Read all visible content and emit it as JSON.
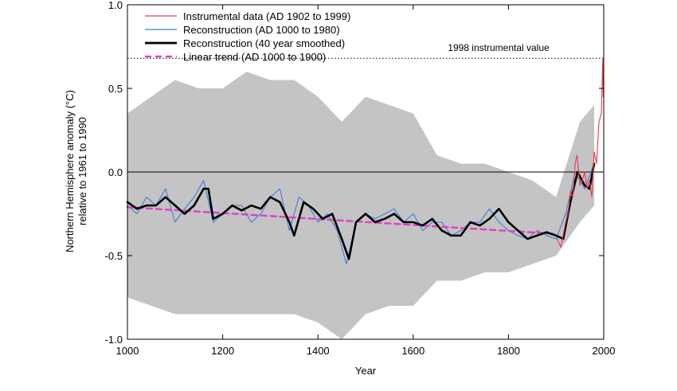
{
  "chart_data": {
    "type": "line",
    "title": "",
    "xlabel": "Year",
    "ylabel": "Northern Hemisphere anomaly (°C)",
    "ylabel_line2": "relative to 1961 to 1990",
    "xlim": [
      1000,
      2000
    ],
    "ylim": [
      -1.0,
      1.0
    ],
    "x_ticks": [
      1000,
      1200,
      1400,
      1600,
      1800,
      2000
    ],
    "y_ticks": [
      -1.0,
      -0.5,
      0.0,
      0.5,
      1.0
    ],
    "y_tick_labels": [
      "-1.0",
      "-0.5",
      "0.0",
      "0.5",
      "1.0"
    ],
    "legend_position": "top-left",
    "grid": false,
    "zero_line": true,
    "annotation": {
      "label": "1998 instrumental value",
      "value": 0.68
    },
    "series": [
      {
        "name": "Instrumental data (AD 1902 to 1999)",
        "color": "#e8394a",
        "style": "line-thin",
        "x": [
          1902,
          1910,
          1920,
          1925,
          1930,
          1935,
          1940,
          1944,
          1950,
          1955,
          1960,
          1965,
          1970,
          1975,
          1980,
          1985,
          1990,
          1995,
          1998,
          1999
        ],
        "y": [
          -0.4,
          -0.45,
          -0.3,
          -0.25,
          -0.12,
          -0.15,
          0.05,
          0.1,
          -0.08,
          -0.05,
          0.0,
          -0.1,
          -0.05,
          -0.15,
          0.12,
          0.05,
          0.3,
          0.35,
          0.68,
          0.45
        ]
      },
      {
        "name": "Reconstruction (AD 1000 to 1980)",
        "color": "#3a7fd6",
        "style": "line-thin",
        "x": [
          1000,
          1020,
          1040,
          1060,
          1080,
          1100,
          1120,
          1140,
          1160,
          1180,
          1200,
          1220,
          1240,
          1260,
          1280,
          1300,
          1320,
          1340,
          1360,
          1380,
          1400,
          1420,
          1440,
          1460,
          1480,
          1500,
          1520,
          1540,
          1560,
          1580,
          1600,
          1620,
          1640,
          1660,
          1680,
          1700,
          1720,
          1740,
          1760,
          1780,
          1800,
          1820,
          1840,
          1860,
          1880,
          1900,
          1920,
          1940,
          1960,
          1980
        ],
        "y": [
          -0.2,
          -0.25,
          -0.15,
          -0.2,
          -0.1,
          -0.3,
          -0.22,
          -0.15,
          -0.05,
          -0.3,
          -0.25,
          -0.2,
          -0.2,
          -0.3,
          -0.25,
          -0.15,
          -0.1,
          -0.35,
          -0.15,
          -0.2,
          -0.3,
          -0.25,
          -0.35,
          -0.55,
          -0.3,
          -0.25,
          -0.28,
          -0.25,
          -0.22,
          -0.3,
          -0.25,
          -0.35,
          -0.3,
          -0.3,
          -0.38,
          -0.35,
          -0.3,
          -0.3,
          -0.22,
          -0.3,
          -0.35,
          -0.38,
          -0.4,
          -0.35,
          -0.38,
          -0.4,
          -0.25,
          0.0,
          -0.1,
          0.05
        ]
      },
      {
        "name": "Reconstruction (40 year smoothed)",
        "color": "#000000",
        "style": "line-thick",
        "x": [
          1000,
          1020,
          1040,
          1060,
          1080,
          1100,
          1120,
          1140,
          1160,
          1170,
          1180,
          1200,
          1220,
          1240,
          1260,
          1280,
          1300,
          1320,
          1340,
          1350,
          1370,
          1390,
          1410,
          1430,
          1450,
          1465,
          1480,
          1500,
          1520,
          1540,
          1560,
          1580,
          1600,
          1620,
          1640,
          1660,
          1680,
          1700,
          1720,
          1740,
          1760,
          1780,
          1800,
          1820,
          1840,
          1860,
          1880,
          1900,
          1915,
          1930,
          1945,
          1960,
          1970,
          1980
        ],
        "y": [
          -0.18,
          -0.22,
          -0.2,
          -0.2,
          -0.15,
          -0.2,
          -0.25,
          -0.2,
          -0.1,
          -0.1,
          -0.28,
          -0.25,
          -0.2,
          -0.23,
          -0.2,
          -0.22,
          -0.15,
          -0.18,
          -0.3,
          -0.38,
          -0.18,
          -0.22,
          -0.28,
          -0.25,
          -0.4,
          -0.52,
          -0.3,
          -0.25,
          -0.3,
          -0.28,
          -0.25,
          -0.3,
          -0.3,
          -0.32,
          -0.28,
          -0.35,
          -0.38,
          -0.38,
          -0.3,
          -0.32,
          -0.28,
          -0.22,
          -0.3,
          -0.35,
          -0.4,
          -0.38,
          -0.36,
          -0.38,
          -0.4,
          -0.18,
          0.0,
          -0.08,
          -0.1,
          0.05
        ]
      },
      {
        "name": "Linear trend (AD 1000 to 1900)",
        "color": "#e040c8",
        "style": "dashed",
        "x": [
          1000,
          1900
        ],
        "y": [
          -0.21,
          -0.37
        ]
      }
    ],
    "uncertainty_band": {
      "color": "#c4c4c4",
      "x": [
        1000,
        1050,
        1100,
        1150,
        1200,
        1250,
        1300,
        1350,
        1400,
        1450,
        1500,
        1550,
        1600,
        1650,
        1700,
        1750,
        1800,
        1850,
        1900,
        1950,
        1980
      ],
      "upper": [
        0.35,
        0.45,
        0.55,
        0.5,
        0.5,
        0.6,
        0.55,
        0.55,
        0.45,
        0.3,
        0.45,
        0.4,
        0.35,
        0.1,
        0.05,
        0.05,
        0.0,
        -0.05,
        -0.15,
        0.3,
        0.4
      ],
      "lower": [
        -0.75,
        -0.8,
        -0.85,
        -0.85,
        -0.85,
        -0.85,
        -0.85,
        -0.85,
        -0.9,
        -1.0,
        -0.85,
        -0.8,
        -0.8,
        -0.65,
        -0.65,
        -0.6,
        -0.6,
        -0.55,
        -0.5,
        -0.3,
        -0.2
      ]
    }
  }
}
